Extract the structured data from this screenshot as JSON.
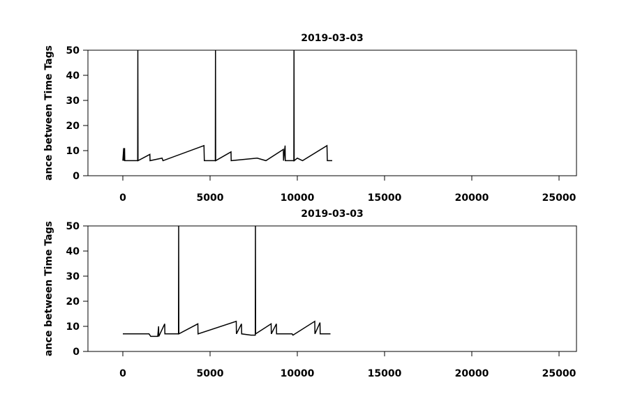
{
  "chart_data": [
    {
      "type": "line",
      "title": "2019-03-03",
      "y_label": "ance between Time Tags",
      "x": [
        0,
        50,
        60,
        100,
        110,
        850,
        860,
        870,
        1550,
        1560,
        2250,
        2300,
        4650,
        4670,
        5300,
        5310,
        5320,
        6200,
        6210,
        7700,
        8200,
        9200,
        9210,
        9300,
        9310,
        9800,
        9810,
        9820,
        10000,
        10300,
        11700,
        11720,
        12000
      ],
      "series": [
        {
          "color": "#000000",
          "values": [
            6,
            11,
            6,
            11,
            6,
            6,
            50,
            6,
            8.5,
            6,
            7,
            6,
            12,
            6,
            6,
            50,
            6,
            9.5,
            6,
            7,
            6,
            10.5,
            6,
            12,
            6,
            6,
            50,
            6,
            7,
            6,
            12,
            6,
            6
          ]
        }
      ],
      "xlim": [
        -2000,
        26000
      ],
      "xticks": [
        0,
        5000,
        10000,
        15000,
        20000,
        25000
      ],
      "ylim": [
        0,
        50
      ],
      "yticks": [
        0,
        10,
        20,
        30,
        40,
        50
      ]
    },
    {
      "type": "line",
      "title": "2019-03-03",
      "y_label": "ance between Time Tags",
      "x": [
        0,
        1500,
        1600,
        2000,
        2050,
        2060,
        2400,
        2410,
        3190,
        3200,
        3210,
        4300,
        4310,
        6500,
        6510,
        6800,
        6810,
        7350,
        7590,
        7600,
        7610,
        8500,
        8510,
        8800,
        8810,
        9700,
        9750,
        11000,
        11010,
        11300,
        11310,
        11900
      ],
      "series": [
        {
          "color": "#000000",
          "values": [
            7,
            7,
            6,
            6,
            10,
            6,
            11,
            7,
            7,
            50,
            7,
            11,
            7,
            12,
            7,
            11,
            7,
            6.5,
            6.5,
            50,
            7,
            11,
            7,
            11,
            7,
            7,
            6.5,
            12,
            7,
            11.5,
            7,
            7
          ]
        }
      ],
      "xlim": [
        -2000,
        26000
      ],
      "xticks": [
        0,
        5000,
        10000,
        15000,
        20000,
        25000
      ],
      "ylim": [
        0,
        50
      ],
      "yticks": [
        0,
        10,
        20,
        30,
        40,
        50
      ]
    }
  ]
}
